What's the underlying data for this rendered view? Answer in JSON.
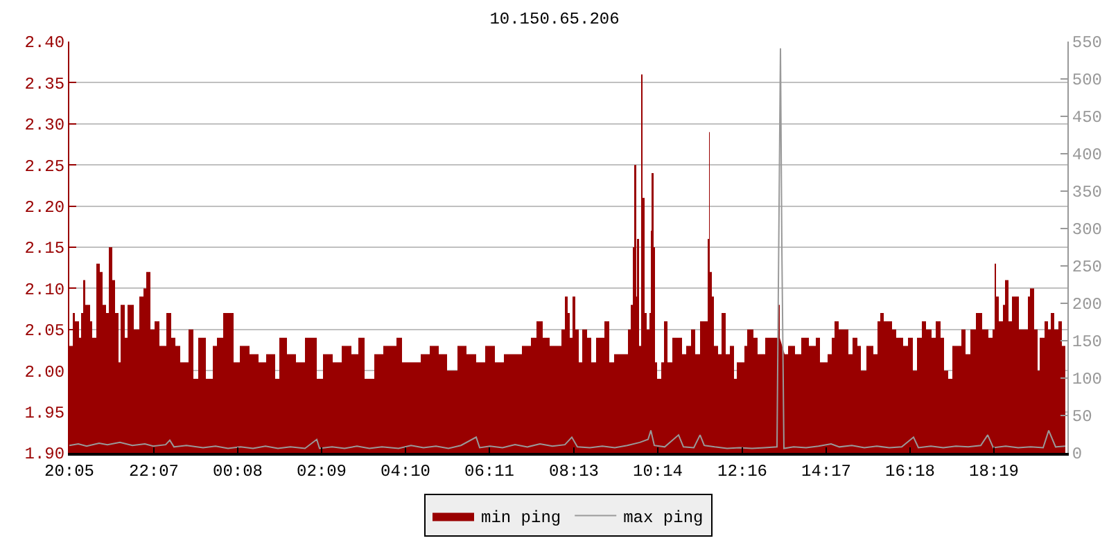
{
  "chart_data": {
    "type": "area",
    "title": "10.150.65.206",
    "xlim": [
      "--01-01T20:05",
      "--01-02T20:05"
    ],
    "xticks": [
      {
        "value": "--01-01T20:05",
        "label": "20:05"
      },
      {
        "value": "--01-01T22:07",
        "label": "22:07"
      },
      {
        "value": "--01-02T00:08",
        "label": "00:08"
      },
      {
        "value": "--01-02T02:09",
        "label": "02:09"
      },
      {
        "value": "--01-02T04:10",
        "label": "04:10"
      },
      {
        "value": "--01-02T06:11",
        "label": "06:11"
      },
      {
        "value": "--01-02T08:13",
        "label": "08:13"
      },
      {
        "value": "--01-02T10:14",
        "label": "10:14"
      },
      {
        "value": "--01-02T12:16",
        "label": "12:16"
      },
      {
        "value": "--01-02T14:17",
        "label": "14:17"
      },
      {
        "value": "--01-02T16:18",
        "label": "16:18"
      },
      {
        "value": "--01-02T18:19",
        "label": "18:19"
      }
    ],
    "ylim": [
      1.9,
      2.4
    ],
    "yticks": [
      {
        "value": 1.9,
        "label": "1.90"
      },
      1.95,
      {
        "value": 2.0,
        "label": "2.00"
      },
      2.05,
      {
        "value": 2.1,
        "label": "2.10"
      },
      2.15,
      {
        "value": 2.2,
        "label": "2.20"
      },
      2.25,
      {
        "value": 2.3,
        "label": "2.30"
      },
      2.35,
      {
        "value": 2.4,
        "label": "2.40"
      }
    ],
    "y2lim": [
      0,
      550
    ],
    "y2ticks": [
      0,
      50,
      100,
      150,
      200,
      250,
      300,
      350,
      400,
      450,
      500,
      550
    ],
    "grid": "y",
    "legend": "bottom",
    "series": [
      {
        "name": "min ping",
        "color": "#990000",
        "x": [
          "--01-01T20:05",
          "--01-01T20:10",
          "--01-01T20:13",
          "--01-01T20:19",
          "--01-01T20:22",
          "--01-01T20:25",
          "--01-01T20:28",
          "--01-01T20:35",
          "--01-01T20:38",
          "--01-01T20:44",
          "--01-01T20:49",
          "--01-01T20:53",
          "--01-01T20:58",
          "--01-01T21:02",
          "--01-01T21:07",
          "--01-01T21:11",
          "--01-01T21:16",
          "--01-01T21:19",
          "--01-01T21:25",
          "--01-01T21:29",
          "--01-01T21:38",
          "--01-01T21:46",
          "--01-01T21:52",
          "--01-01T21:56",
          "--01-01T22:02",
          "--01-01T22:08",
          "--01-01T22:15",
          "--01-01T22:25",
          "--01-01T22:32",
          "--01-01T22:38",
          "--01-01T22:45",
          "--01-01T22:57",
          "--01-01T23:04",
          "--01-01T23:11",
          "--01-01T23:22",
          "--01-01T23:32",
          "--01-01T23:38",
          "--01-01T23:47",
          "--01-01T23:55",
          "--01-02T00:02",
          "--01-02T00:11",
          "--01-02T00:25",
          "--01-02T00:38",
          "--01-02T00:49",
          "--01-02T01:02",
          "--01-02T01:08",
          "--01-02T01:19",
          "--01-02T01:32",
          "--01-02T01:45",
          "--01-02T02:02",
          "--01-02T02:11",
          "--01-02T02:25",
          "--01-02T02:38",
          "--01-02T02:52",
          "--01-02T03:02",
          "--01-02T03:11",
          "--01-02T03:25",
          "--01-02T03:38",
          "--01-02T03:57",
          "--01-02T04:05",
          "--01-02T04:19",
          "--01-02T04:32",
          "--01-02T04:45",
          "--01-02T04:58",
          "--01-02T05:10",
          "--01-02T05:25",
          "--01-02T05:38",
          "--01-02T05:52",
          "--01-02T06:05",
          "--01-02T06:19",
          "--01-02T06:32",
          "--01-02T06:45",
          "--01-02T06:58",
          "--01-02T07:11",
          "--01-02T07:19",
          "--01-02T07:28",
          "--01-02T07:38",
          "--01-02T07:45",
          "--01-02T07:55",
          "--01-02T08:00",
          "--01-02T08:04",
          "--01-02T08:07",
          "--01-02T08:11",
          "--01-02T08:15",
          "--01-02T08:20",
          "--01-02T08:25",
          "--01-02T08:32",
          "--01-02T08:38",
          "--01-02T08:45",
          "--01-02T08:52",
          "--01-02T08:57",
          "--01-02T09:04",
          "--01-02T09:11",
          "--01-02T09:22",
          "--01-02T09:31",
          "--01-02T09:35",
          "--01-02T09:38",
          "--01-02T09:40",
          "--01-02T09:43",
          "--01-02T09:44",
          "--01-02T09:47",
          "--01-02T09:50",
          "--01-02T09:52",
          "--01-02T09:55",
          "--01-02T09:58",
          "--01-02T10:02",
          "--01-02T10:04",
          "--01-02T10:05",
          "--01-02T10:08",
          "--01-02T10:10",
          "--01-02T10:13",
          "--01-02T10:19",
          "--01-02T10:23",
          "--01-02T10:28",
          "--01-02T10:35",
          "--01-02T10:41",
          "--01-02T10:49",
          "--01-02T10:55",
          "--01-02T11:02",
          "--01-02T11:08",
          "--01-02T11:15",
          "--01-02T11:22",
          "--01-02T11:26",
          "--01-02T11:28",
          "--01-02T11:29",
          "--01-02T11:32",
          "--01-02T11:35",
          "--01-02T11:41",
          "--01-02T11:46",
          "--01-02T11:52",
          "--01-02T11:58",
          "--01-02T12:04",
          "--01-02T12:08",
          "--01-02T12:19",
          "--01-02T12:23",
          "--01-02T12:32",
          "--01-02T12:38",
          "--01-02T12:49",
          "--01-02T12:58",
          "--01-02T13:07",
          "--01-02T13:10",
          "--01-02T13:13",
          "--01-02T13:17",
          "--01-02T13:22",
          "--01-02T13:32",
          "--01-02T13:41",
          "--01-02T13:52",
          "--01-02T14:02",
          "--01-02T14:08",
          "--01-02T14:19",
          "--01-02T14:25",
          "--01-02T14:29",
          "--01-02T14:35",
          "--01-02T14:41",
          "--01-02T14:49",
          "--01-02T14:55",
          "--01-02T15:02",
          "--01-02T15:07",
          "--01-02T15:15",
          "--01-02T15:25",
          "--01-02T15:31",
          "--01-02T15:35",
          "--01-02T15:40",
          "--01-02T15:45",
          "--01-02T15:52",
          "--01-02T15:58",
          "--01-02T16:08",
          "--01-02T16:15",
          "--01-02T16:22",
          "--01-02T16:28",
          "--01-02T16:35",
          "--01-02T16:41",
          "--01-02T16:49",
          "--01-02T16:55",
          "--01-02T17:02",
          "--01-02T17:07",
          "--01-02T17:13",
          "--01-02T17:19",
          "--01-02T17:25",
          "--01-02T17:32",
          "--01-02T17:38",
          "--01-02T17:45",
          "--01-02T17:53",
          "--01-02T18:02",
          "--01-02T18:11",
          "--01-02T18:17",
          "--01-02T18:20",
          "--01-02T18:22",
          "--01-02T18:26",
          "--01-02T18:32",
          "--01-02T18:35",
          "--01-02T18:40",
          "--01-02T18:45",
          "--01-02T18:50",
          "--01-02T18:55",
          "--01-02T19:00",
          "--01-02T19:05",
          "--01-02T19:08",
          "--01-02T19:11",
          "--01-02T19:17",
          "--01-02T19:22",
          "--01-02T19:25",
          "--01-02T19:32",
          "--01-02T19:37",
          "--01-02T19:41",
          "--01-02T19:46",
          "--01-02T19:52",
          "--01-02T19:57",
          "--01-02T20:02"
        ],
        "values": [
          2.03,
          2.07,
          2.06,
          2.04,
          2.07,
          2.11,
          2.08,
          2.06,
          2.04,
          2.13,
          2.12,
          2.08,
          2.07,
          2.15,
          2.11,
          2.07,
          2.01,
          2.08,
          2.04,
          2.08,
          2.05,
          2.09,
          2.1,
          2.12,
          2.05,
          2.06,
          2.03,
          2.07,
          2.04,
          2.03,
          2.01,
          2.05,
          1.99,
          2.04,
          1.99,
          2.03,
          2.04,
          2.07,
          2.07,
          2.01,
          2.03,
          2.02,
          2.01,
          2.02,
          1.99,
          2.04,
          2.02,
          2.01,
          2.04,
          1.99,
          2.02,
          2.01,
          2.03,
          2.02,
          2.04,
          1.99,
          2.02,
          2.03,
          2.04,
          2.01,
          2.01,
          2.02,
          2.03,
          2.02,
          2.0,
          2.03,
          2.02,
          2.01,
          2.03,
          2.01,
          2.02,
          2.02,
          2.03,
          2.04,
          2.06,
          2.04,
          2.03,
          2.03,
          2.05,
          2.09,
          2.07,
          2.04,
          2.09,
          2.05,
          2.01,
          2.05,
          2.04,
          2.01,
          2.04,
          2.04,
          2.06,
          2.01,
          2.02,
          2.02,
          2.05,
          2.08,
          2.15,
          2.25,
          2.09,
          2.16,
          2.03,
          2.36,
          2.21,
          2.07,
          2.05,
          2.07,
          2.17,
          2.24,
          2.15,
          2.01,
          1.99,
          2.01,
          2.06,
          2.01,
          2.04,
          2.04,
          2.02,
          2.03,
          2.05,
          2.02,
          2.06,
          2.06,
          2.16,
          2.29,
          2.12,
          2.09,
          2.03,
          2.02,
          2.07,
          2.02,
          2.03,
          1.99,
          2.01,
          2.03,
          2.05,
          2.04,
          2.02,
          2.04,
          2.04,
          2.08,
          2.04,
          null,
          2.02,
          2.03,
          2.02,
          2.04,
          2.03,
          2.04,
          2.01,
          2.02,
          2.04,
          2.06,
          2.05,
          2.05,
          2.02,
          2.04,
          2.03,
          2.0,
          2.03,
          2.02,
          2.06,
          2.07,
          2.06,
          2.06,
          2.05,
          2.04,
          2.03,
          2.04,
          2.0,
          2.04,
          2.06,
          2.05,
          2.04,
          2.06,
          2.04,
          2.0,
          1.99,
          2.03,
          2.03,
          2.05,
          2.02,
          2.05,
          2.07,
          2.05,
          2.04,
          2.05,
          2.13,
          2.09,
          2.06,
          2.08,
          2.11,
          2.06,
          2.09,
          2.09,
          2.05,
          2.05,
          2.05,
          2.09,
          2.1,
          2.05,
          2.0,
          2.04,
          2.06,
          2.05,
          2.07,
          2.05,
          2.06,
          2.03,
          2.04
        ]
      },
      {
        "name": "max ping",
        "type": "line",
        "axis": "y2",
        "color": "#999999",
        "x": [
          "--01-01T20:05",
          "--01-01T20:18",
          "--01-01T20:30",
          "--01-01T20:48",
          "--01-01T21:00",
          "--01-01T21:18",
          "--01-01T21:36",
          "--01-01T21:54",
          "--01-01T22:06",
          "--01-01T22:24",
          "--01-01T22:30",
          "--01-01T22:36",
          "--01-01T22:54",
          "--01-01T23:18",
          "--01-01T23:36",
          "--01-01T23:54",
          "--01-02T00:12",
          "--01-02T00:30",
          "--01-02T00:48",
          "--01-02T01:06",
          "--01-02T01:24",
          "--01-02T01:45",
          "--01-02T02:02",
          "--01-02T02:06",
          "--01-02T02:24",
          "--01-02T02:42",
          "--01-02T03:00",
          "--01-02T03:18",
          "--01-02T03:36",
          "--01-02T04:00",
          "--01-02T04:18",
          "--01-02T04:36",
          "--01-02T04:54",
          "--01-02T05:12",
          "--01-02T05:30",
          "--01-02T05:52",
          "--01-02T05:57",
          "--01-02T06:12",
          "--01-02T06:30",
          "--01-02T06:48",
          "--01-02T07:06",
          "--01-02T07:24",
          "--01-02T07:42",
          "--01-02T08:00",
          "--01-02T08:10",
          "--01-02T08:18",
          "--01-02T08:36",
          "--01-02T08:54",
          "--01-02T09:12",
          "--01-02T09:30",
          "--01-02T09:48",
          "--01-02T10:00",
          "--01-02T10:04",
          "--01-02T10:09",
          "--01-02T10:24",
          "--01-02T10:44",
          "--01-02T10:51",
          "--01-02T11:06",
          "--01-02T11:15",
          "--01-02T11:21",
          "--01-02T11:36",
          "--01-02T11:54",
          "--01-02T12:12",
          "--01-02T12:30",
          "--01-02T12:48",
          "--01-02T13:06",
          "--01-02T13:11",
          "--01-02T13:13",
          "--01-02T13:16",
          "--01-02T13:30",
          "--01-02T13:48",
          "--01-02T14:06",
          "--01-02T14:24",
          "--01-02T14:36",
          "--01-02T14:54",
          "--01-02T15:12",
          "--01-02T15:30",
          "--01-02T15:48",
          "--01-02T16:06",
          "--01-02T16:23",
          "--01-02T16:30",
          "--01-02T16:48",
          "--01-02T17:06",
          "--01-02T17:24",
          "--01-02T17:42",
          "--01-02T18:00",
          "--01-02T18:10",
          "--01-02T18:18",
          "--01-02T18:36",
          "--01-02T18:54",
          "--01-02T19:12",
          "--01-02T19:30",
          "--01-02T19:38",
          "--01-02T19:48",
          "--01-02T20:02"
        ],
        "values": [
          10,
          12,
          9,
          13,
          11,
          14,
          10,
          12,
          9,
          11,
          17,
          8,
          10,
          7,
          9,
          6,
          8,
          6,
          9,
          6,
          8,
          6,
          18,
          6,
          8,
          6,
          9,
          6,
          8,
          6,
          10,
          7,
          9,
          6,
          10,
          21,
          7,
          9,
          7,
          11,
          8,
          12,
          9,
          11,
          21,
          8,
          7,
          9,
          7,
          10,
          14,
          18,
          30,
          10,
          8,
          24,
          8,
          7,
          24,
          10,
          8,
          6,
          7,
          6,
          7,
          8,
          541,
          275,
          6,
          8,
          7,
          9,
          12,
          8,
          10,
          7,
          9,
          7,
          8,
          21,
          7,
          9,
          7,
          9,
          8,
          10,
          24,
          7,
          9,
          7,
          8,
          7,
          30,
          8,
          9
        ]
      }
    ]
  }
}
